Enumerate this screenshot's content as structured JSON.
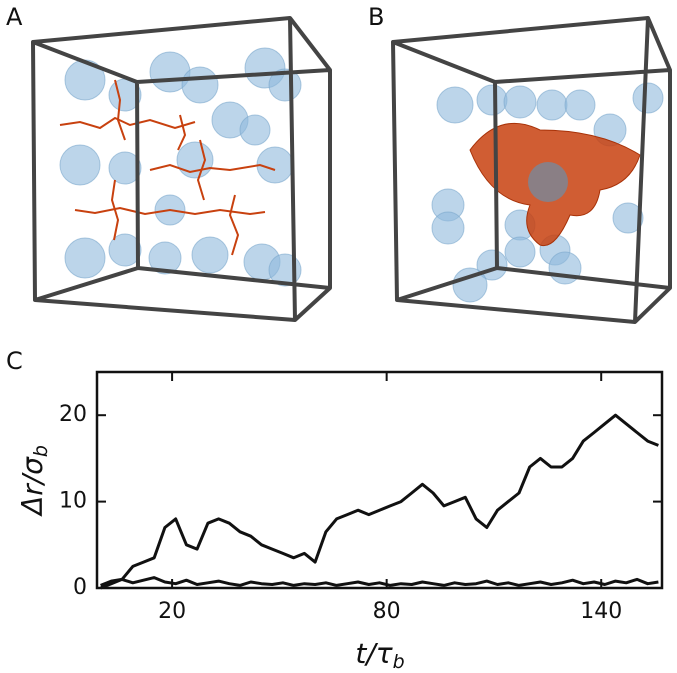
{
  "panels": [
    "A",
    "B",
    "C"
  ],
  "chart_data": {
    "type": "line",
    "x_label": [
      "t/τ",
      "b"
    ],
    "y_label": [
      "Δr/σ",
      "b"
    ],
    "x": [
      0,
      3,
      6,
      9,
      12,
      15,
      18,
      21,
      24,
      27,
      30,
      33,
      36,
      39,
      42,
      45,
      48,
      51,
      54,
      57,
      60,
      63,
      66,
      69,
      72,
      75,
      78,
      81,
      84,
      87,
      90,
      93,
      96,
      99,
      102,
      105,
      108,
      111,
      114,
      117,
      120,
      123,
      126,
      129,
      132,
      135,
      138,
      141,
      144,
      147,
      150,
      153,
      156
    ],
    "series": [
      {
        "color": "#111111",
        "values": [
          0,
          0.5,
          1,
          2.5,
          3,
          3.5,
          7,
          8,
          5,
          4.5,
          7.5,
          8,
          7.5,
          6.5,
          6,
          5,
          4.5,
          4,
          3.5,
          4,
          3,
          6.5,
          8,
          8.5,
          9,
          8.5,
          9,
          9.5,
          10,
          11,
          12,
          11,
          9.5,
          10,
          10.5,
          8,
          7,
          9,
          10,
          11,
          14,
          15,
          14,
          14,
          15,
          17,
          18,
          19,
          20,
          19,
          18,
          17,
          16.5
        ]
      },
      {
        "color": "#111111",
        "values": [
          0.3,
          0.8,
          1,
          0.6,
          0.9,
          1.2,
          0.7,
          0.5,
          0.9,
          0.4,
          0.6,
          0.8,
          0.5,
          0.3,
          0.7,
          0.5,
          0.4,
          0.6,
          0.3,
          0.5,
          0.4,
          0.6,
          0.3,
          0.5,
          0.7,
          0.4,
          0.6,
          0.3,
          0.5,
          0.4,
          0.7,
          0.5,
          0.3,
          0.6,
          0.4,
          0.5,
          0.8,
          0.4,
          0.6,
          0.3,
          0.5,
          0.7,
          0.4,
          0.6,
          0.9,
          0.5,
          0.7,
          0.4,
          0.8,
          0.6,
          1,
          0.5,
          0.7
        ]
      }
    ],
    "xlim": [
      -1,
      157
    ],
    "ylim": [
      0,
      25
    ],
    "xticks": [
      20,
      80,
      140
    ],
    "yticks": [
      0,
      10,
      20
    ]
  }
}
